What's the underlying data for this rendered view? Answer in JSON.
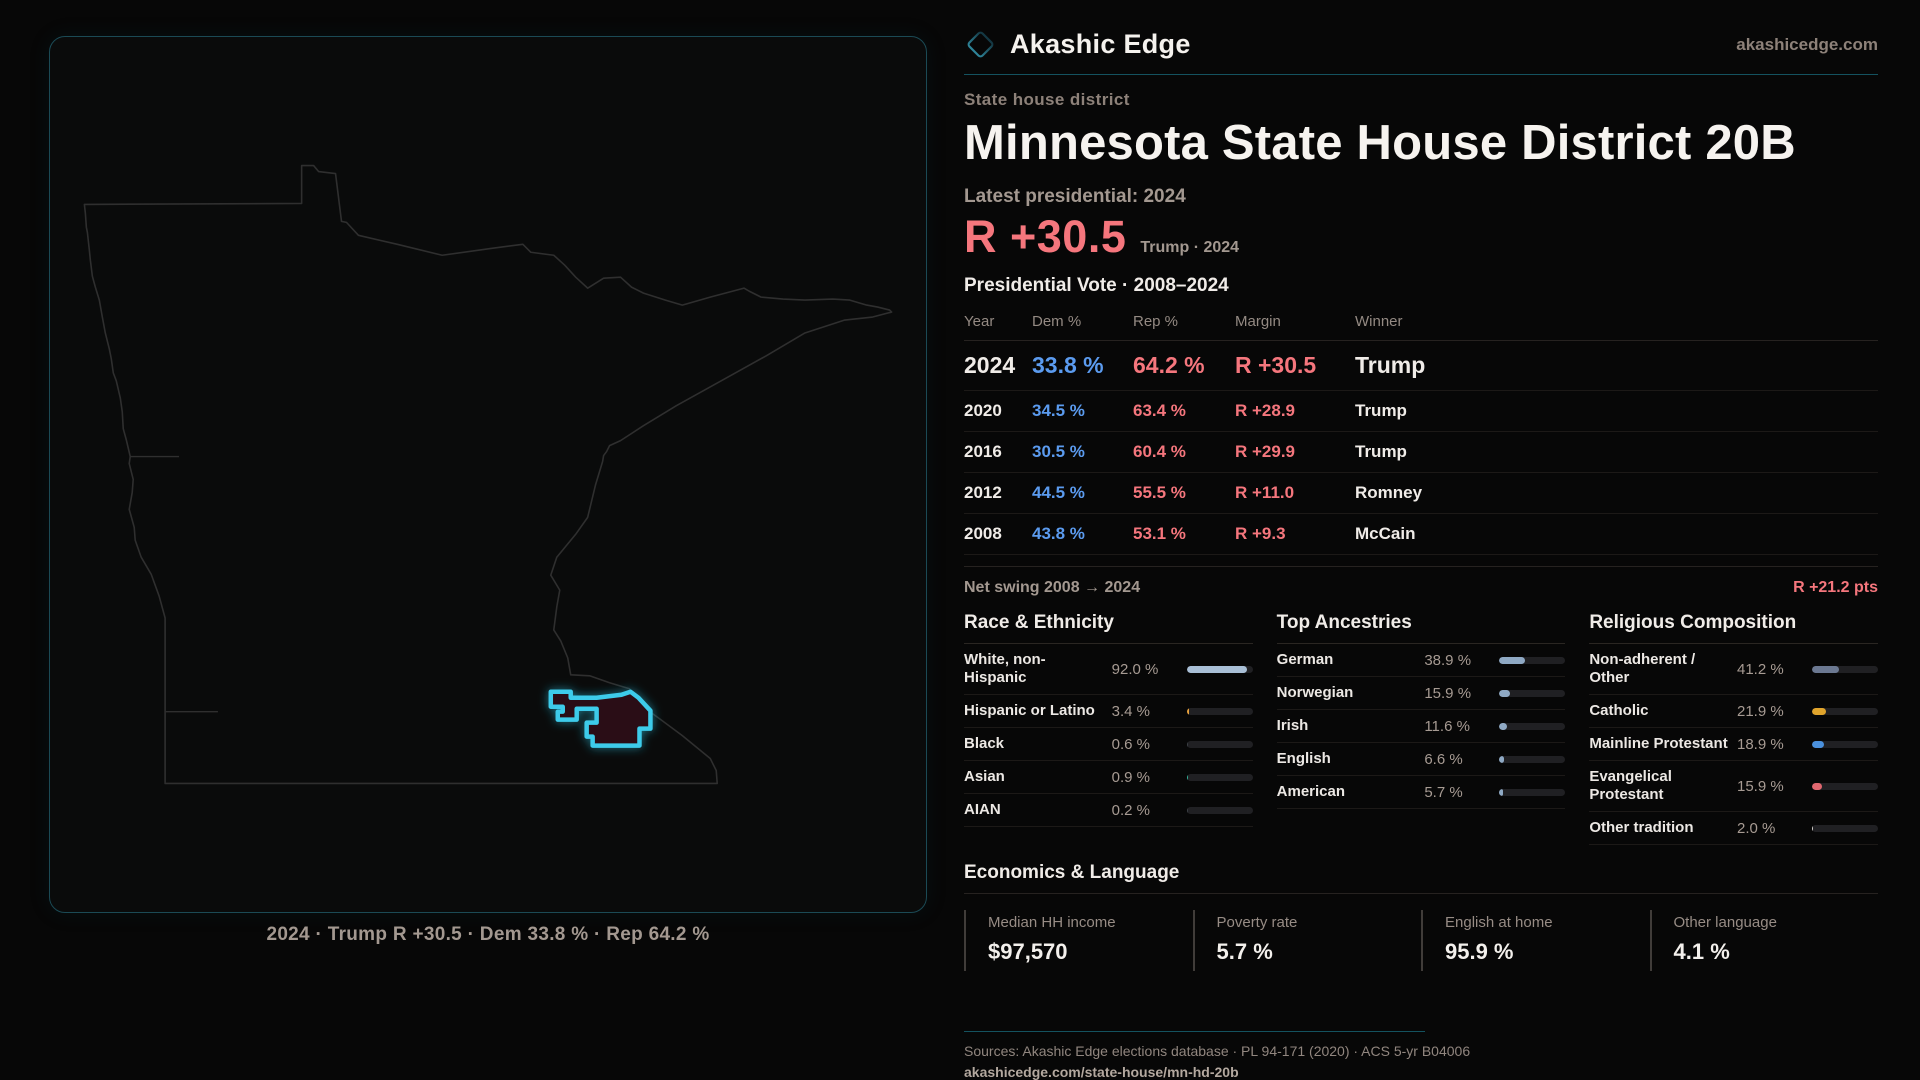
{
  "brand": {
    "name": "Akashic Edge",
    "domain": "akashicedge.com"
  },
  "header": {
    "eyebrow": "State house district",
    "title": "Minnesota State House District 20B",
    "latest_label": "Latest presidential: 2024",
    "margin_big": "R +30.5",
    "margin_sub": "Trump · 2024"
  },
  "map": {
    "caption": "2024 · Trump R +30.5 · Dem 33.8 % · Rep 64.2 %"
  },
  "colors": {
    "dem": "#5b9bef",
    "rep": "#f5767d",
    "district_outline": "#3ecbea",
    "accent_teal": "#14525f"
  },
  "table": {
    "title": "Presidential Vote · 2008–2024",
    "headers": {
      "year": "Year",
      "dem": "Dem %",
      "rep": "Rep %",
      "margin": "Margin",
      "winner": "Winner"
    },
    "rows": [
      {
        "year": "2024",
        "dem": "33.8 %",
        "rep": "64.2 %",
        "margin": "R +30.5",
        "winner": "Trump"
      },
      {
        "year": "2020",
        "dem": "34.5 %",
        "rep": "63.4 %",
        "margin": "R +28.9",
        "winner": "Trump"
      },
      {
        "year": "2016",
        "dem": "30.5 %",
        "rep": "60.4 %",
        "margin": "R +29.9",
        "winner": "Trump"
      },
      {
        "year": "2012",
        "dem": "44.5 %",
        "rep": "55.5 %",
        "margin": "R +11.0",
        "winner": "Romney"
      },
      {
        "year": "2008",
        "dem": "43.8 %",
        "rep": "53.1 %",
        "margin": "R +9.3",
        "winner": "McCain"
      }
    ]
  },
  "net_swing": {
    "label": "Net swing 2008 → 2024",
    "value": "R +21.2 pts"
  },
  "demographics": {
    "columns": [
      {
        "title": "Race & Ethnicity",
        "items": [
          {
            "label": "White, non-Hispanic",
            "value": "92.0 %",
            "pct": 92.0,
            "color": "#a9bfd6"
          },
          {
            "label": "Hispanic or Latino",
            "value": "3.4 %",
            "pct": 3.4,
            "color": "#e8a13c"
          },
          {
            "label": "Black",
            "value": "0.6 %",
            "pct": 0.6,
            "color": "#3c4046"
          },
          {
            "label": "Asian",
            "value": "0.9 %",
            "pct": 0.9,
            "color": "#35b39a"
          },
          {
            "label": "AIAN",
            "value": "0.2 %",
            "pct": 0.2,
            "color": "#3c4046"
          }
        ]
      },
      {
        "title": "Top Ancestries",
        "items": [
          {
            "label": "German",
            "value": "38.9 %",
            "pct": 38.9,
            "color": "#8fa9c4"
          },
          {
            "label": "Norwegian",
            "value": "15.9 %",
            "pct": 15.9,
            "color": "#8fa9c4"
          },
          {
            "label": "Irish",
            "value": "11.6 %",
            "pct": 11.6,
            "color": "#8fa9c4"
          },
          {
            "label": "English",
            "value": "6.6 %",
            "pct": 6.6,
            "color": "#8fa9c4"
          },
          {
            "label": "American",
            "value": "5.7 %",
            "pct": 5.7,
            "color": "#8fa9c4"
          }
        ]
      },
      {
        "title": "Religious Composition",
        "items": [
          {
            "label": "Non-adherent / Other",
            "value": "41.2 %",
            "pct": 41.2,
            "color": "#6b7891"
          },
          {
            "label": "Catholic",
            "value": "21.9 %",
            "pct": 21.9,
            "color": "#e0a42c"
          },
          {
            "label": "Mainline Protestant",
            "value": "18.9 %",
            "pct": 18.9,
            "color": "#4a90dd"
          },
          {
            "label": "Evangelical Protestant",
            "value": "15.9 %",
            "pct": 15.9,
            "color": "#e0676f"
          },
          {
            "label": "Other tradition",
            "value": "2.0 %",
            "pct": 2.0,
            "color": "#d8d4d0"
          }
        ]
      }
    ]
  },
  "economics": {
    "title": "Economics & Language",
    "stats": [
      {
        "label": "Median HH income",
        "value": "$97,570"
      },
      {
        "label": "Poverty rate",
        "value": "5.7 %"
      },
      {
        "label": "English at home",
        "value": "95.9 %"
      },
      {
        "label": "Other language",
        "value": "4.1 %"
      }
    ]
  },
  "footer": {
    "sources": "Sources: Akashic Edge elections database · PL 94-171 (2020) · ACS 5-yr B04006",
    "url": "akashicedge.com/state-house/mn-hd-20b"
  }
}
